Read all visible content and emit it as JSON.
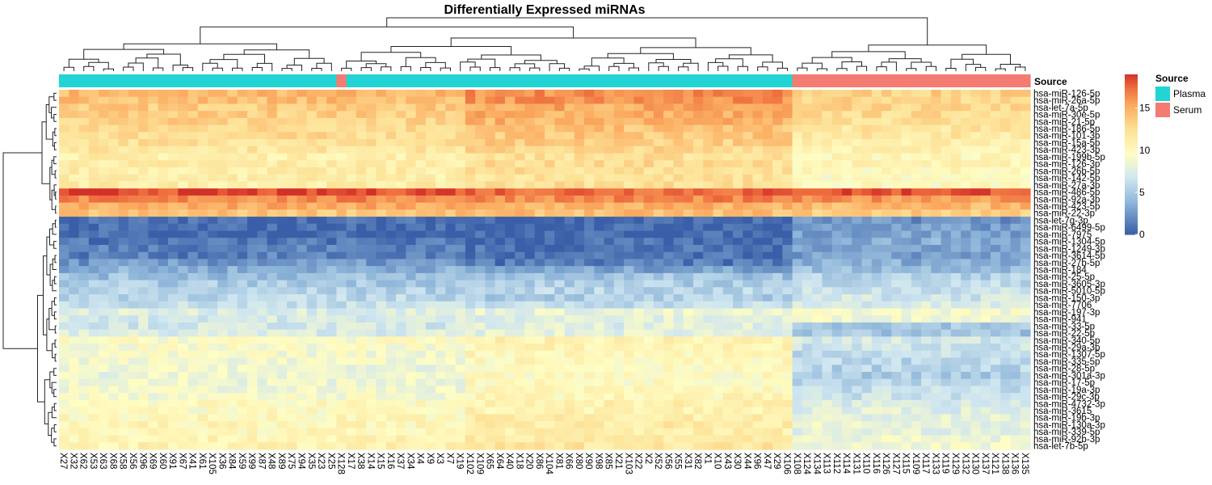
{
  "chart_data": {
    "type": "heatmap",
    "title": "Differentially Expressed miRNAs",
    "annotation_label": "Source",
    "legend": {
      "annotation_title": "Source",
      "groups": [
        {
          "name": "Plasma",
          "color": "#22D4D4"
        },
        {
          "name": "Serum",
          "color": "#F47B72"
        }
      ],
      "colorbar_ticks": [
        0,
        5,
        10,
        15
      ],
      "colorbar_range": [
        0,
        19
      ],
      "placement": "right"
    },
    "colors": {
      "low": "#3A5FA8",
      "mid": "#FEFDC3",
      "high": "#D3302A",
      "plasma": "#22D4D4",
      "serum": "#F47B72"
    },
    "columns": [
      "X27",
      "X32",
      "X62",
      "X53",
      "X63",
      "X68",
      "X58",
      "X56",
      "X96",
      "X69",
      "X60",
      "X91",
      "X67",
      "X41",
      "X61",
      "X105",
      "X36",
      "X84",
      "X59",
      "X99",
      "X87",
      "X48",
      "X89",
      "X75",
      "X94",
      "X35",
      "X23",
      "X25",
      "X128",
      "X17",
      "X38",
      "X14",
      "X15",
      "X16",
      "X37",
      "X34",
      "X4",
      "X9",
      "X3",
      "X7",
      "X19",
      "X102",
      "X109",
      "X65",
      "X64",
      "X40",
      "X18",
      "X20",
      "X86",
      "X104",
      "X81",
      "X66",
      "X80",
      "X90",
      "X98",
      "X85",
      "X21",
      "X103",
      "X22",
      "X2",
      "X52",
      "X56",
      "X55",
      "X31",
      "X82",
      "X1",
      "X10",
      "X43",
      "X30",
      "X44",
      "X96",
      "X47",
      "X29",
      "X106",
      "X108",
      "X124",
      "X134",
      "X113",
      "X112",
      "X114",
      "X131",
      "X110",
      "X116",
      "X126",
      "X127",
      "X115",
      "X109",
      "X117",
      "X133",
      "X119",
      "X129",
      "X132",
      "X130",
      "X137",
      "X121",
      "X138",
      "X136",
      "X135"
    ],
    "column_groups": [
      "Plasma",
      "Plasma",
      "Plasma",
      "Plasma",
      "Plasma",
      "Plasma",
      "Plasma",
      "Plasma",
      "Plasma",
      "Plasma",
      "Plasma",
      "Plasma",
      "Plasma",
      "Plasma",
      "Plasma",
      "Plasma",
      "Plasma",
      "Plasma",
      "Plasma",
      "Plasma",
      "Plasma",
      "Plasma",
      "Plasma",
      "Plasma",
      "Plasma",
      "Plasma",
      "Plasma",
      "Plasma",
      "Serum",
      "Plasma",
      "Plasma",
      "Plasma",
      "Plasma",
      "Plasma",
      "Plasma",
      "Plasma",
      "Plasma",
      "Plasma",
      "Plasma",
      "Plasma",
      "Plasma",
      "Plasma",
      "Plasma",
      "Plasma",
      "Plasma",
      "Plasma",
      "Plasma",
      "Plasma",
      "Plasma",
      "Plasma",
      "Plasma",
      "Plasma",
      "Plasma",
      "Plasma",
      "Plasma",
      "Plasma",
      "Plasma",
      "Plasma",
      "Plasma",
      "Plasma",
      "Plasma",
      "Plasma",
      "Plasma",
      "Plasma",
      "Plasma",
      "Plasma",
      "Plasma",
      "Plasma",
      "Plasma",
      "Plasma",
      "Plasma",
      "Plasma",
      "Plasma",
      "Plasma",
      "Serum",
      "Serum",
      "Serum",
      "Serum",
      "Serum",
      "Serum",
      "Serum",
      "Serum",
      "Serum",
      "Serum",
      "Serum",
      "Serum",
      "Serum",
      "Serum",
      "Serum",
      "Serum",
      "Serum",
      "Serum",
      "Serum",
      "Serum",
      "Serum",
      "Serum",
      "Serum",
      "Serum"
    ],
    "rows": [
      {
        "name": "hsa-miR-126-5p",
        "plasma": 14.5,
        "serum": 13.2,
        "hi_block": 16.3
      },
      {
        "name": "hsa-miR-26a-5p",
        "plasma": 14.3,
        "serum": 13.0,
        "hi_block": 16.0
      },
      {
        "name": "hsa-let-7a-5p",
        "plasma": 13.6,
        "serum": 12.8,
        "hi_block": 15.2
      },
      {
        "name": "hsa-miR-30e-5p",
        "plasma": 13.5,
        "serum": 12.6,
        "hi_block": 15.0
      },
      {
        "name": "hsa-miR-21-5p",
        "plasma": 13.2,
        "serum": 12.3,
        "hi_block": 14.7
      },
      {
        "name": "hsa-miR-186-5p",
        "plasma": 12.8,
        "serum": 11.8,
        "hi_block": 14.0
      },
      {
        "name": "hsa-miR-101-3p",
        "plasma": 12.6,
        "serum": 11.6,
        "hi_block": 13.8
      },
      {
        "name": "hsa-miR-15a-5p",
        "plasma": 12.3,
        "serum": 11.3,
        "hi_block": 13.4
      },
      {
        "name": "hsa-miR-423-3p",
        "plasma": 11.8,
        "serum": 10.9,
        "hi_block": 12.9
      },
      {
        "name": "hsa-miR-199b-5p",
        "plasma": 11.0,
        "serum": 10.2,
        "hi_block": 12.2
      },
      {
        "name": "hsa-miR-126-3p",
        "plasma": 11.3,
        "serum": 10.4,
        "hi_block": 12.5
      },
      {
        "name": "hsa-miR-26b-5p",
        "plasma": 11.2,
        "serum": 10.0,
        "hi_block": 12.3
      },
      {
        "name": "hsa-miR-142-5p",
        "plasma": 11.0,
        "serum": 9.6,
        "hi_block": 12.1
      },
      {
        "name": "hsa-miR-27a-3p",
        "plasma": 11.2,
        "serum": 9.8,
        "hi_block": 12.4
      },
      {
        "name": "hsa-miR-486-5p",
        "plasma": 18.4,
        "serum": 18.2,
        "hi_block": 17.6
      },
      {
        "name": "hsa-miR-92a-3p",
        "plasma": 16.4,
        "serum": 16.0,
        "hi_block": 16.5
      },
      {
        "name": "hsa-miR-423-5p",
        "plasma": 15.0,
        "serum": 14.5,
        "hi_block": 14.8
      },
      {
        "name": "hsa-miR-22-3p",
        "plasma": 14.0,
        "serum": 13.6,
        "hi_block": 14.2
      },
      {
        "name": "hsa-let-7g-3p",
        "plasma": 0.6,
        "serum": 2.2,
        "hi_block": 0.5
      },
      {
        "name": "hsa-miR-6499-5p",
        "plasma": 0.5,
        "serum": 2.6,
        "hi_block": 0.4
      },
      {
        "name": "hsa-miR-7975",
        "plasma": 0.4,
        "serum": 3.0,
        "hi_block": 0.4
      },
      {
        "name": "hsa-miR-1304-5p",
        "plasma": 1.0,
        "serum": 3.4,
        "hi_block": 0.6
      },
      {
        "name": "hsa-miR-1249-3p",
        "plasma": 1.6,
        "serum": 3.2,
        "hi_block": 0.8
      },
      {
        "name": "hsa-miR-3614-5p",
        "plasma": 1.4,
        "serum": 2.8,
        "hi_block": 0.7
      },
      {
        "name": "hsa-miR-27b-5p",
        "plasma": 2.4,
        "serum": 3.6,
        "hi_block": 1.2
      },
      {
        "name": "hsa-miR-184",
        "plasma": 3.6,
        "serum": 4.4,
        "hi_block": 3.0
      },
      {
        "name": "hsa-miR-25-5p",
        "plasma": 4.4,
        "serum": 5.4,
        "hi_block": 4.6
      },
      {
        "name": "hsa-miR-3605-3p",
        "plasma": 5.0,
        "serum": 6.0,
        "hi_block": 5.2
      },
      {
        "name": "hsa-miR-5010-5p",
        "plasma": 5.4,
        "serum": 6.4,
        "hi_block": 5.6
      },
      {
        "name": "hsa-miR-150-3p",
        "plasma": 5.8,
        "serum": 6.8,
        "hi_block": 5.2
      },
      {
        "name": "hsa-miR-7706",
        "plasma": 6.4,
        "serum": 7.2,
        "hi_block": 6.2
      },
      {
        "name": "hsa-miR-197-3p",
        "plasma": 7.6,
        "serum": 9.0,
        "hi_block": 8.2
      },
      {
        "name": "hsa-miR-941",
        "plasma": 7.2,
        "serum": 8.8,
        "hi_block": 7.8
      },
      {
        "name": "hsa-miR-33-5p",
        "plasma": 7.0,
        "serum": 5.0,
        "hi_block": 7.6
      },
      {
        "name": "hsa-miR-22-5p",
        "plasma": 7.4,
        "serum": 4.6,
        "hi_block": 8.0
      },
      {
        "name": "hsa-miR-340-5p",
        "plasma": 9.4,
        "serum": 7.0,
        "hi_block": 10.6
      },
      {
        "name": "hsa-miR-29a-3p",
        "plasma": 9.2,
        "serum": 6.6,
        "hi_block": 10.4
      },
      {
        "name": "hsa-miR-1307-5p",
        "plasma": 9.0,
        "serum": 6.2,
        "hi_block": 10.2
      },
      {
        "name": "hsa-miR-335-5p",
        "plasma": 8.8,
        "serum": 5.8,
        "hi_block": 10.0
      },
      {
        "name": "hsa-miR-28-5p",
        "plasma": 8.6,
        "serum": 5.6,
        "hi_block": 9.8
      },
      {
        "name": "hsa-miR-301a-3p",
        "plasma": 8.4,
        "serum": 5.2,
        "hi_block": 9.6
      },
      {
        "name": "hsa-miR-17-5p",
        "plasma": 8.6,
        "serum": 6.0,
        "hi_block": 9.8
      },
      {
        "name": "hsa-miR-19a-3p",
        "plasma": 8.8,
        "serum": 6.2,
        "hi_block": 10.0
      },
      {
        "name": "hsa-miR-29c-3p",
        "plasma": 9.0,
        "serum": 6.6,
        "hi_block": 10.2
      },
      {
        "name": "hsa-miR-4732-3p",
        "plasma": 9.8,
        "serum": 7.4,
        "hi_block": 10.8
      },
      {
        "name": "hsa-miR-3615",
        "plasma": 9.6,
        "serum": 7.6,
        "hi_block": 10.6
      },
      {
        "name": "hsa-miR-19b-3p",
        "plasma": 10.0,
        "serum": 7.8,
        "hi_block": 11.2
      },
      {
        "name": "hsa-miR-130a-3p",
        "plasma": 10.2,
        "serum": 8.2,
        "hi_block": 11.4
      },
      {
        "name": "hsa-miR-339-5p",
        "plasma": 10.0,
        "serum": 8.0,
        "hi_block": 11.0
      },
      {
        "name": "hsa-miR-92b-3p",
        "plasma": 10.4,
        "serum": 8.4,
        "hi_block": 11.6
      },
      {
        "name": "hsa-let-7b-5p",
        "plasma": 10.6,
        "serum": 8.8,
        "hi_block": 11.8
      }
    ]
  }
}
